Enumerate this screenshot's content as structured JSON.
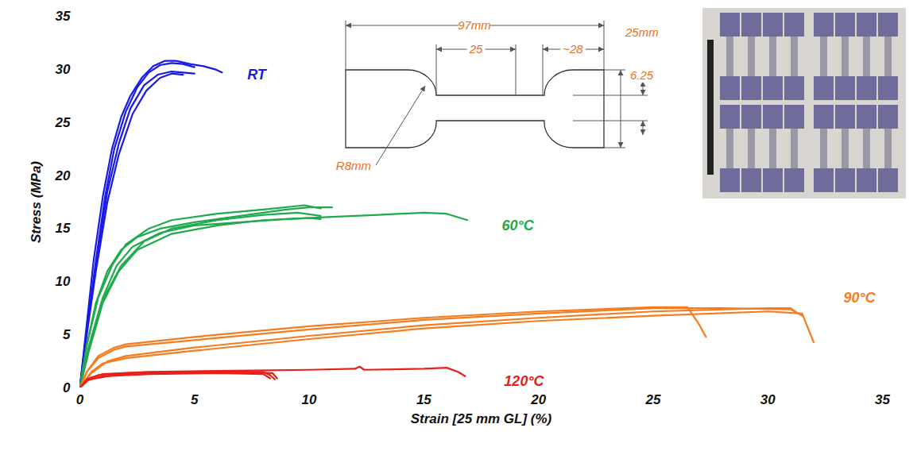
{
  "chart_data": {
    "type": "line",
    "x_label": "Strain [25 mm GL] (%)",
    "y_label": "Stress (MPa)",
    "xlim": [
      0,
      35
    ],
    "xticks": [
      0,
      5,
      10,
      15,
      20,
      25,
      30,
      35
    ],
    "ylim": [
      0,
      35
    ],
    "yticks": [
      0,
      5,
      10,
      15,
      20,
      25,
      30,
      35
    ],
    "grid": false,
    "series": [
      {
        "name": "RT",
        "color": "#1a1ae6",
        "label_at": [
          7.3,
          29.5
        ],
        "curves": [
          {
            "x": [
              0,
              0.3,
              0.6,
              1,
              1.4,
              1.8,
              2.2,
              2.7,
              3.2,
              3.7,
              4.2,
              4.8,
              5.4,
              5.9,
              6.2
            ],
            "values": [
              0,
              6,
              12,
              18,
              22.5,
              25.5,
              27.5,
              29.2,
              30.3,
              30.8,
              30.8,
              30.5,
              30.3,
              30,
              29.7
            ]
          },
          {
            "x": [
              0,
              0.3,
              0.7,
              1.1,
              1.5,
              2,
              2.5,
              3,
              3.5,
              4,
              4.5,
              5
            ],
            "values": [
              0,
              5.5,
              12,
              18,
              22.5,
              26,
              28.3,
              29.7,
              30.4,
              30.6,
              30.5,
              30.2
            ]
          },
          {
            "x": [
              0,
              0.35,
              0.8,
              1.2,
              1.7,
              2.2,
              2.8,
              3.4,
              4,
              4.5,
              5
            ],
            "values": [
              0,
              6,
              13,
              18.5,
              23,
              26.3,
              28.5,
              29.5,
              29.8,
              29.7,
              29.6
            ]
          },
          {
            "x": [
              0,
              0.3,
              0.7,
              1.2,
              1.7,
              2.3,
              2.9,
              3.5,
              4,
              4.5
            ],
            "values": [
              0,
              5,
              11,
              17.5,
              22,
              25.8,
              28,
              29.2,
              29.6,
              29.5
            ]
          }
        ]
      },
      {
        "name": "60°C",
        "color": "#1faa4c",
        "label_at": [
          18.4,
          15.3
        ],
        "curves": [
          {
            "x": [
              0,
              0.3,
              0.7,
              1.2,
              1.8,
              2.5,
              3.5,
              5,
              7,
              9,
              10,
              11
            ],
            "values": [
              0,
              4,
              8,
              11,
              13,
              14.2,
              15,
              15.6,
              16.2,
              16.8,
              17,
              17
            ]
          },
          {
            "x": [
              0,
              0.3,
              0.8,
              1.4,
              2,
              3,
              4,
              6,
              8,
              9.8,
              10.5
            ],
            "values": [
              0,
              4,
              8.5,
              11.5,
              13.5,
              15,
              15.8,
              16.4,
              16.8,
              17.2,
              16.9
            ]
          },
          {
            "x": [
              0,
              0.4,
              1,
              1.6,
              2.3,
              3.5,
              5,
              7,
              9,
              11,
              13,
              15,
              16,
              16.9
            ],
            "values": [
              0,
              4,
              8.5,
              11.5,
              13.3,
              14.6,
              15.3,
              15.6,
              15.9,
              16.1,
              16.3,
              16.5,
              16.4,
              15.8
            ]
          },
          {
            "x": [
              0,
              0.4,
              1,
              1.7,
              2.5,
              4,
              6,
              8,
              10,
              10.5
            ],
            "values": [
              0,
              3.5,
              8,
              11,
              13,
              14.5,
              15.3,
              15.8,
              16,
              15.9
            ]
          },
          {
            "x": [
              0,
              0.4,
              1,
              1.8,
              2.8,
              4,
              6,
              8,
              9.5,
              10.5
            ],
            "values": [
              0,
              3.8,
              8.3,
              11.5,
              13.8,
              15,
              15.8,
              16.3,
              16.5,
              16.2
            ]
          }
        ]
      },
      {
        "name": "90°C",
        "color": "#f57c1f",
        "label_at": [
          33.3,
          8.5
        ],
        "curves": [
          {
            "x": [
              0,
              0.3,
              0.8,
              1.5,
              2,
              5,
              10,
              15,
              20,
              25,
              26.5,
              27,
              27.3
            ],
            "values": [
              0,
              1.5,
              3,
              3.8,
              4.1,
              4.8,
              5.8,
              6.6,
              7.2,
              7.6,
              7.6,
              6,
              4.8
            ]
          },
          {
            "x": [
              0,
              0.3,
              0.8,
              1.5,
              2,
              5,
              10,
              15,
              20,
              25,
              28,
              31,
              31.5
            ],
            "values": [
              0,
              1.5,
              2.8,
              3.6,
              3.9,
              4.5,
              5.5,
              6.4,
              7,
              7.5,
              7.5,
              7.4,
              6.8
            ]
          },
          {
            "x": [
              0,
              0.5,
              1,
              2,
              5,
              10,
              15,
              20,
              25,
              30,
              31.5,
              32
            ],
            "values": [
              0,
              1.5,
              2.3,
              2.8,
              3.5,
              4.6,
              5.6,
              6.3,
              6.8,
              7.2,
              7,
              4.3
            ]
          },
          {
            "x": [
              0,
              0.5,
              1.2,
              2,
              5,
              10,
              15,
              20,
              25,
              30,
              31,
              31.3
            ],
            "values": [
              0,
              1.4,
              2.5,
              3,
              3.8,
              4.9,
              5.9,
              6.6,
              7.2,
              7.5,
              7.5,
              7
            ]
          }
        ]
      },
      {
        "name": "120°C",
        "color": "#e8201a",
        "label_at": [
          18.5,
          0.6
        ],
        "curves": [
          {
            "x": [
              0,
              0.3,
              0.8,
              2,
              5,
              8,
              8.3,
              8.5
            ],
            "values": [
              0,
              0.8,
              1.2,
              1.4,
              1.5,
              1.5,
              1.2,
              0.8
            ]
          },
          {
            "x": [
              0,
              0.3,
              1,
              3,
              6,
              8,
              8.3
            ],
            "values": [
              0,
              0.7,
              1.1,
              1.3,
              1.4,
              1.3,
              0.9
            ]
          },
          {
            "x": [
              0,
              0.4,
              1,
              3,
              6,
              10,
              12,
              12.2,
              12.4,
              15,
              16,
              16.5,
              16.8
            ],
            "values": [
              0,
              0.9,
              1.3,
              1.5,
              1.6,
              1.7,
              1.8,
              2,
              1.7,
              1.8,
              1.9,
              1.5,
              1.1
            ]
          },
          {
            "x": [
              0,
              0.4,
              1.5,
              4,
              7,
              8.4,
              8.6
            ],
            "values": [
              0,
              0.8,
              1.2,
              1.4,
              1.5,
              1.4,
              0.9
            ]
          }
        ]
      }
    ],
    "inset": {
      "specimen_dimensions": {
        "overall_length": "97mm",
        "gauge_length": "25",
        "grip_length": "~28",
        "grip_width": "25mm",
        "gauge_width": "6.25",
        "fillet_radius": "R8mm"
      }
    }
  }
}
